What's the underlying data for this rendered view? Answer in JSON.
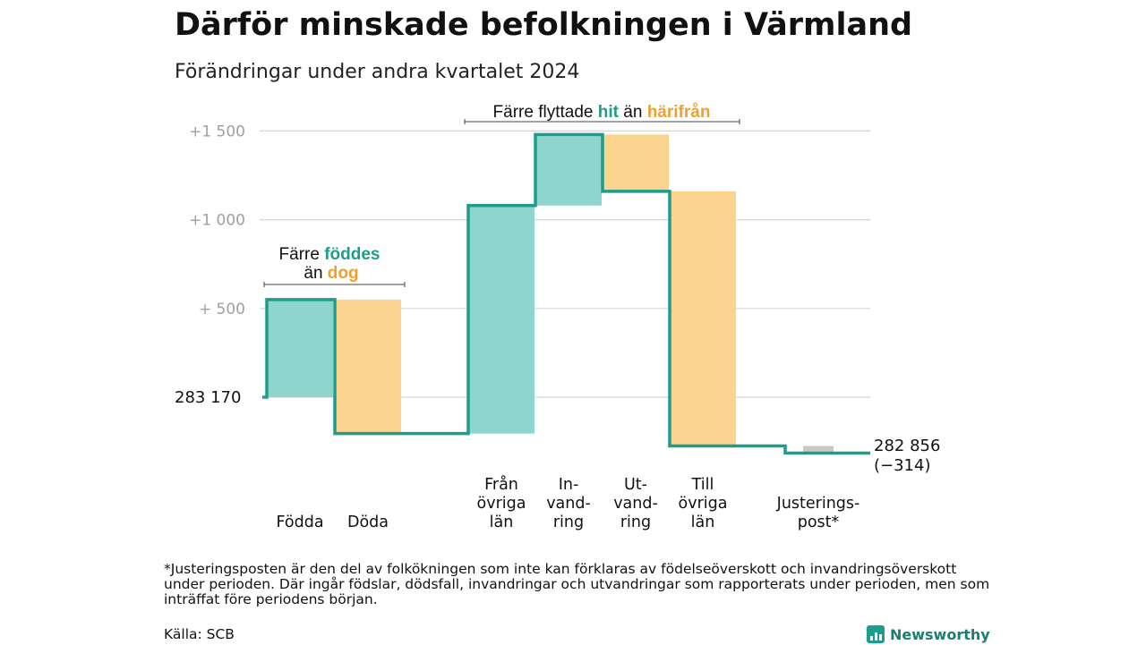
{
  "header": {
    "title": "Därför minskade befolkningen i Värmland",
    "subtitle": "Förändringar under andra kvartalet 2024"
  },
  "chart_data": {
    "type": "waterfall",
    "title": "Därför minskade befolkningen i Värmland",
    "subtitle": "Förändringar under andra kvartalet 2024",
    "start_value": 283170,
    "start_label": "283 170",
    "end_value": 282856,
    "end_label": "282 856",
    "change_label": "(−314)",
    "ylim": [
      -350,
      1500
    ],
    "yticks": [
      {
        "value": 500,
        "label": "+ 500"
      },
      {
        "value": 1000,
        "label": "+1 000"
      },
      {
        "value": 1500,
        "label": "+1 500"
      }
    ],
    "grid": true,
    "colors": {
      "increase": "#8dd5cd",
      "decrease": "#fad48e",
      "adjustment": "#c8c8c8",
      "line": "#1e9c8c",
      "highlight_green": "#1e9c8c",
      "highlight_orange": "#f0a030"
    },
    "steps": [
      {
        "label_lines": [
          "Födda"
        ],
        "delta": 550,
        "kind": "increase"
      },
      {
        "label_lines": [
          "Döda"
        ],
        "delta": -755,
        "kind": "decrease"
      },
      {
        "label_lines": [
          "Från",
          "övriga",
          "län"
        ],
        "delta": 1285,
        "kind": "increase"
      },
      {
        "label_lines": [
          "In-",
          "vand-",
          "ring"
        ],
        "delta": 400,
        "kind": "increase"
      },
      {
        "label_lines": [
          "Ut-",
          "vand-",
          "ring"
        ],
        "delta": -320,
        "kind": "decrease"
      },
      {
        "label_lines": [
          "Till",
          "övriga",
          "län"
        ],
        "delta": -1435,
        "kind": "decrease"
      },
      {
        "label_lines": [
          "Justerings-",
          "post*"
        ],
        "delta": -40,
        "kind": "adjustment"
      }
    ],
    "annotations": [
      {
        "lines": [
          [
            {
              "text": "Färre ",
              "style": "plain"
            },
            {
              "text": "föddes",
              "style": "green"
            }
          ],
          [
            {
              "text": "än ",
              "style": "plain"
            },
            {
              "text": "dog",
              "style": "orange"
            }
          ]
        ]
      },
      {
        "lines": [
          [
            {
              "text": "Färre flyttade ",
              "style": "plain"
            },
            {
              "text": "hit",
              "style": "green"
            },
            {
              "text": " än ",
              "style": "plain"
            },
            {
              "text": "härifrån",
              "style": "orange"
            }
          ]
        ]
      }
    ]
  },
  "footer": {
    "footnote": "*Justeringsposten är den del av folkökningen som inte kan förklaras av födelseöverskott och invandringsöverskott under perioden. Där ingår födslar, dödsfall, invandringar och utvandringar som rapporterats under perioden, men som inträffat före periodens början.",
    "source": "Källa: SCB",
    "brand": "Newsworthy"
  }
}
